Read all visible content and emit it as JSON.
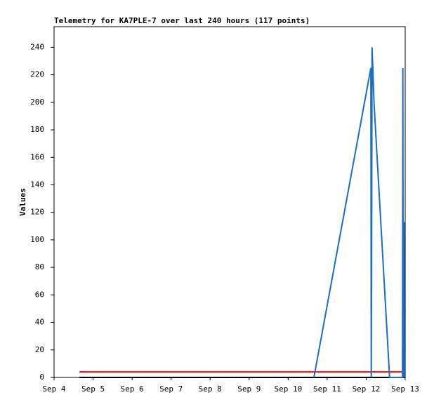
{
  "chart_data": {
    "type": "line",
    "title": "Telemetry for KA7PLE-7 over last 240 hours (117 points)",
    "y_label": "Values",
    "xlim": [
      4,
      13
    ],
    "ylim": [
      0,
      255
    ],
    "xticks": [
      {
        "value": 4,
        "label": "Sep 4"
      },
      {
        "value": 5,
        "label": "Sep 5"
      },
      {
        "value": 6,
        "label": "Sep 6"
      },
      {
        "value": 7,
        "label": "Sep 7"
      },
      {
        "value": 8,
        "label": "Sep 8"
      },
      {
        "value": 9,
        "label": "Sep 9"
      },
      {
        "value": 10,
        "label": "Sep 10"
      },
      {
        "value": 11,
        "label": "Sep 11"
      },
      {
        "value": 12,
        "label": "Sep 12"
      },
      {
        "value": 13,
        "label": "Sep 13"
      }
    ],
    "yticks": [
      0,
      20,
      40,
      60,
      80,
      100,
      120,
      140,
      160,
      180,
      200,
      220,
      240
    ],
    "series": [
      {
        "color": "#000000",
        "x": [
          4.65,
          13
        ],
        "values": [
          0,
          0
        ]
      },
      {
        "color": "#ff0000",
        "x": [
          4.65,
          13
        ],
        "values": [
          4,
          4
        ]
      },
      {
        "color": "#1a6ec8",
        "x": [
          10.66,
          12.12,
          12.13,
          12.14,
          12.15,
          12.17,
          12.2,
          12.6,
          12.93,
          12.94,
          12.95,
          12.97,
          12.98
        ],
        "values": [
          0,
          225,
          0,
          90,
          240,
          225,
          200,
          0,
          0,
          225,
          0,
          113,
          0
        ]
      }
    ]
  }
}
